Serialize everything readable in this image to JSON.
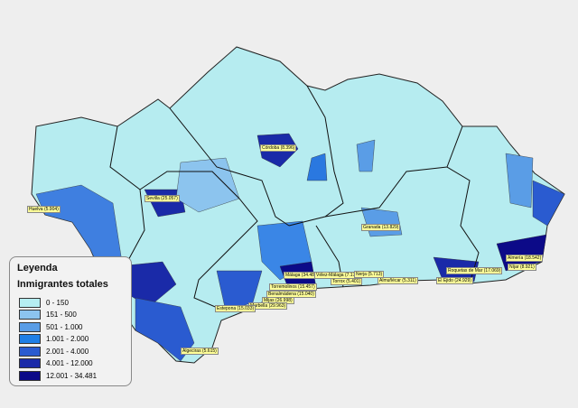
{
  "legend": {
    "title": "Leyenda",
    "subtitle": "Inmigrantes totales",
    "items": [
      {
        "label": "0 - 150",
        "color": "#b5eef2"
      },
      {
        "label": "151 - 500",
        "color": "#8cc4ee"
      },
      {
        "label": "501 - 1.000",
        "color": "#5a9de6"
      },
      {
        "label": "1.001 - 2.000",
        "color": "#1f7fe6"
      },
      {
        "label": "2.001 - 4.000",
        "color": "#2a5bd0"
      },
      {
        "label": "4.001 - 12.000",
        "color": "#1a2aa8"
      },
      {
        "label": "12.001 - 34.481",
        "color": "#0c0a88"
      }
    ]
  },
  "labels": [
    "Córdoba (8.396)",
    "Sevilla (25.057)",
    "Huelva (5.904)",
    "Granada (13.829)",
    "Almería (18.542)",
    "Níjar (8.921)",
    "Roquetas de Mar (17.069)",
    "El Ejido (24.929)",
    "Málaga (34.481)",
    "Vélez-Málaga (7.177)",
    "Nerja (5.713)",
    "Torrox (5.401)",
    "Almuñécar (5.311)",
    "Torremolinos (15.457)",
    "Benalmádena (15.040)",
    "Mijas (26.998)",
    "Marbella (29.963)",
    "Estepona (15.033)",
    "Algeciras (5.615)"
  ]
}
